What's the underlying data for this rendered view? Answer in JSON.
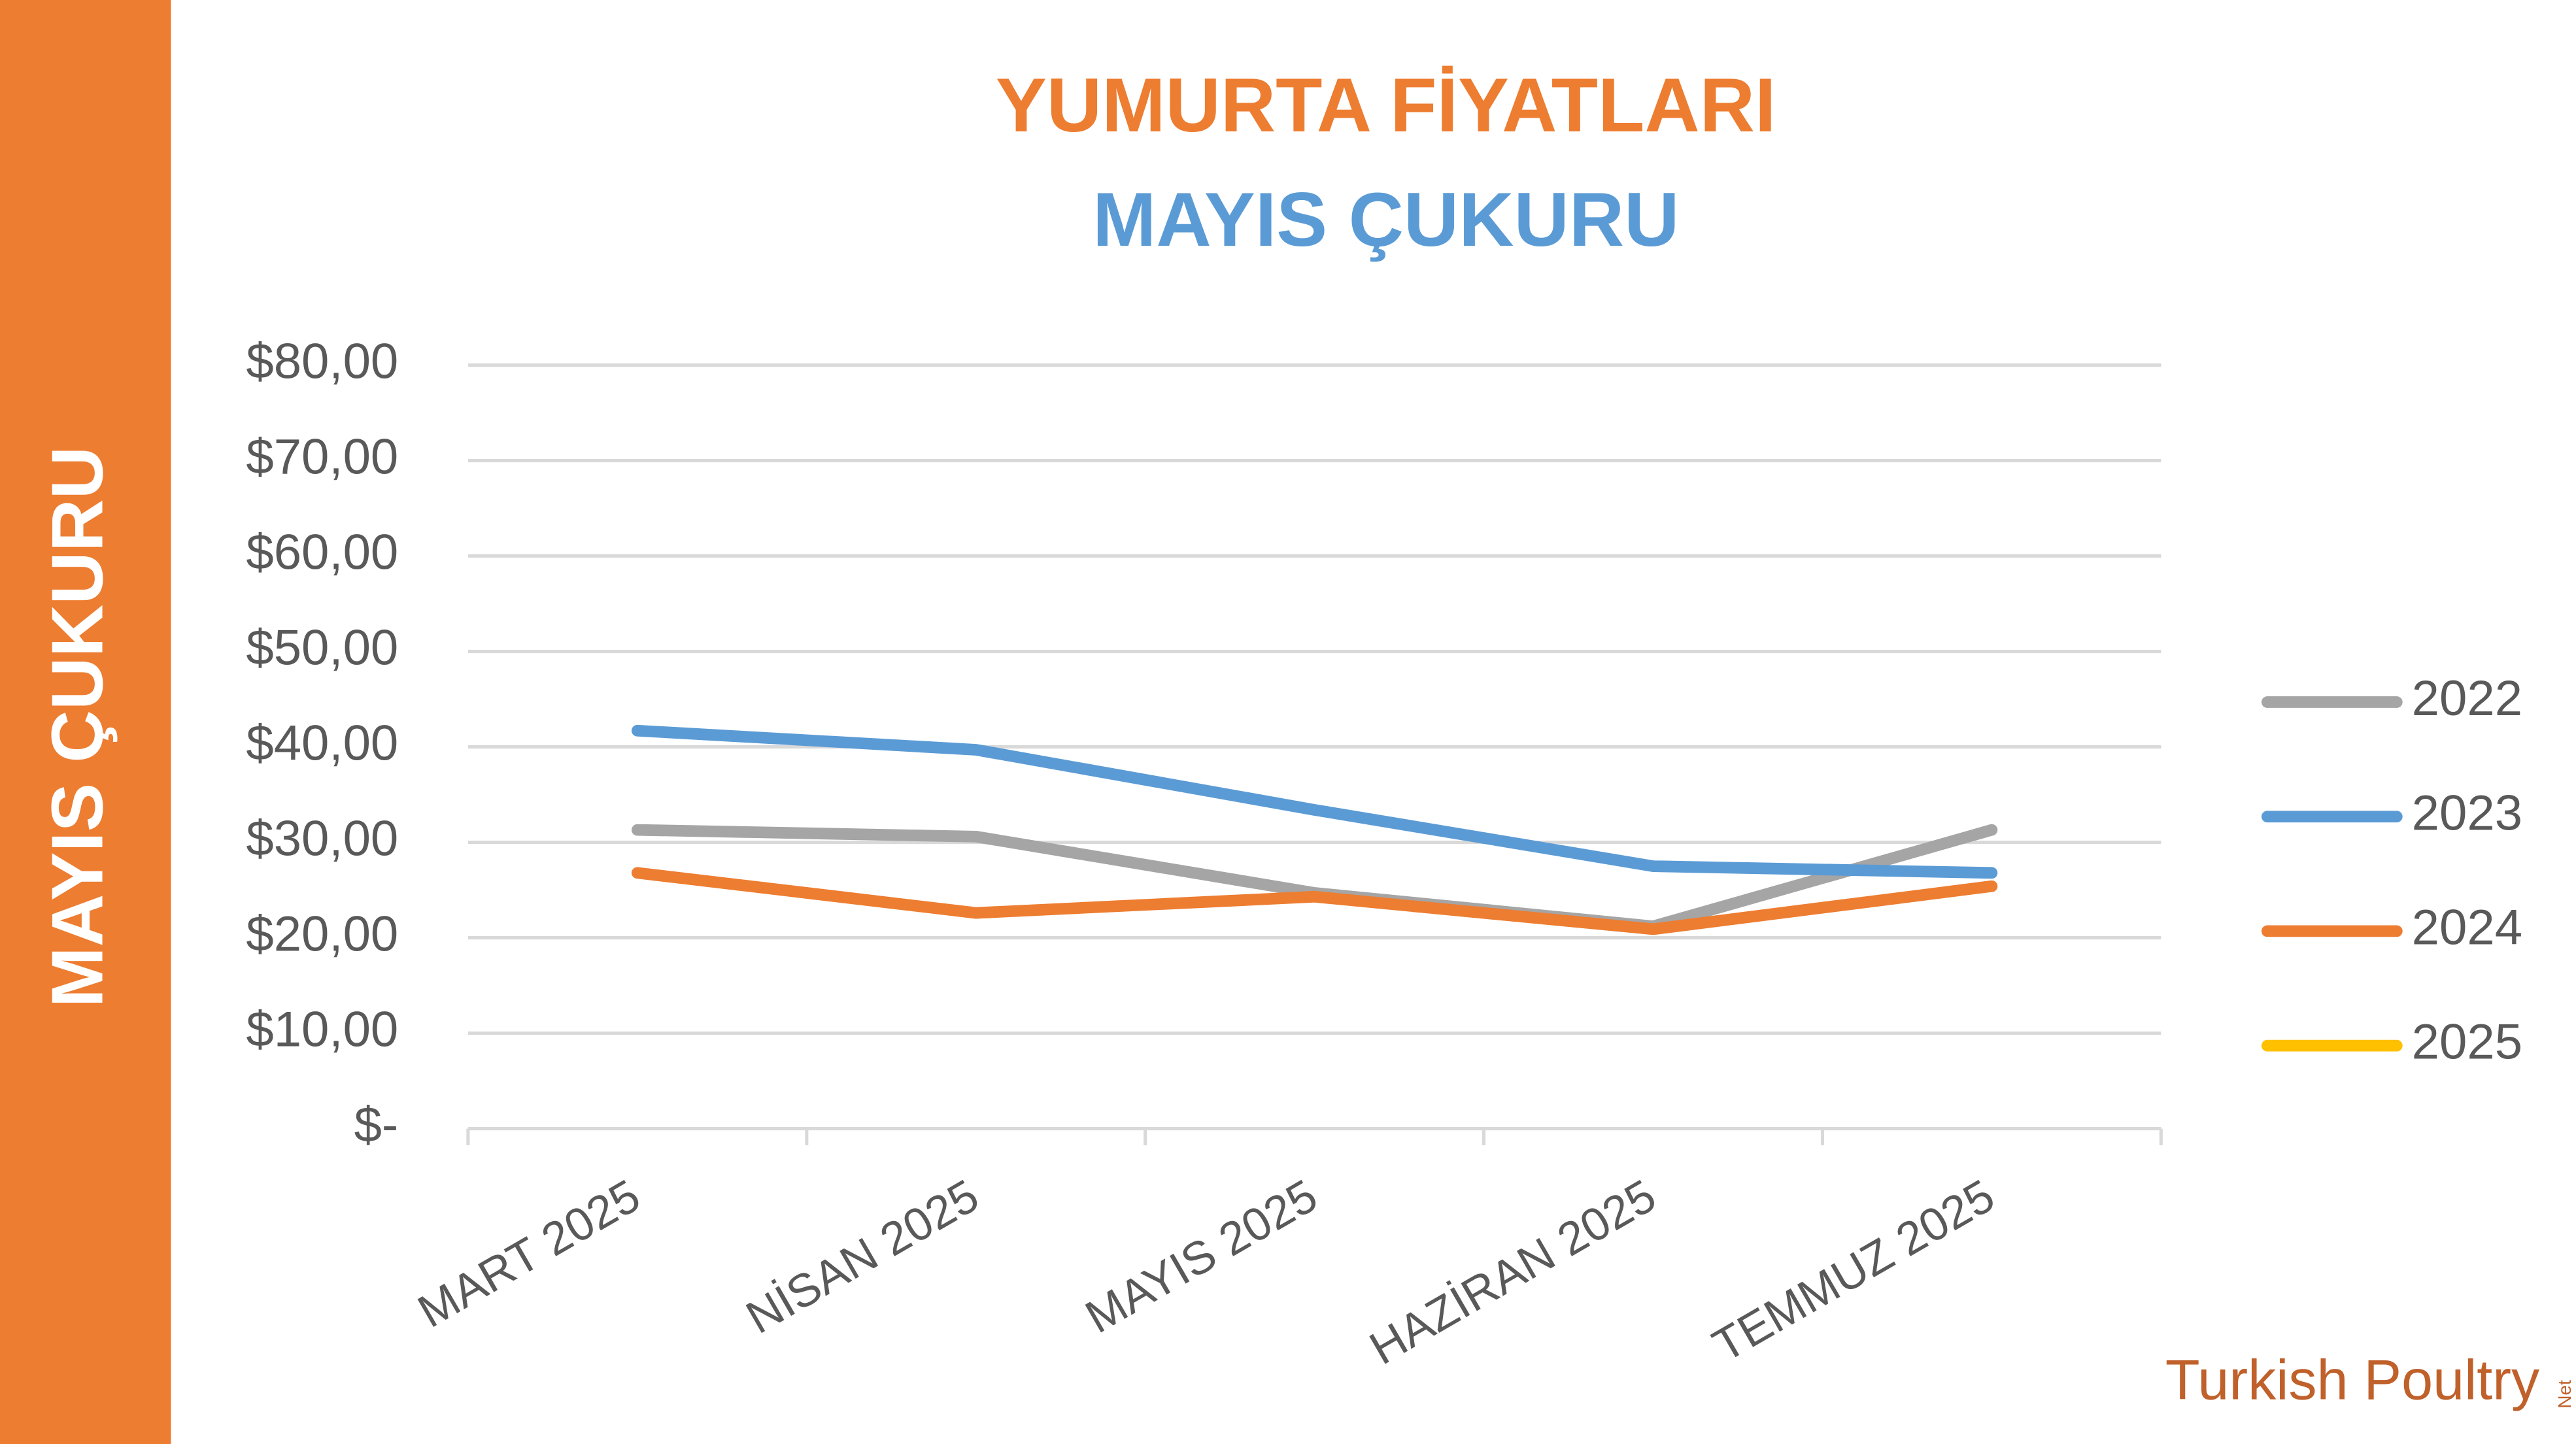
{
  "chart_data": {
    "type": "line",
    "title": "YUMURTA FİYATLARI",
    "subtitle": "MAYIS ÇUKURU",
    "categories": [
      "MART 2025",
      "NİSAN 2025",
      "MAYIS 2025",
      "HAZİRAN 2025",
      "TEMMUZ 2025"
    ],
    "series": [
      {
        "name": "2022",
        "color": "#a5a5a5",
        "values": [
          31.3,
          30.6,
          24.7,
          21.2,
          31.3
        ]
      },
      {
        "name": "2023",
        "color": "#5b9bd5",
        "values": [
          41.7,
          39.7,
          33.4,
          27.5,
          26.8
        ]
      },
      {
        "name": "2024",
        "color": "#ed7d31",
        "values": [
          26.8,
          22.6,
          24.3,
          20.9,
          25.4
        ]
      },
      {
        "name": "2025",
        "color": "#ffc000",
        "values": [
          null,
          null,
          null,
          null,
          null
        ]
      }
    ],
    "ylim": [
      0,
      80
    ],
    "yticks": [
      {
        "value": 0,
        "label": "$-"
      },
      {
        "value": 10,
        "label": "$10,00"
      },
      {
        "value": 20,
        "label": "$20,00"
      },
      {
        "value": 30,
        "label": "$30,00"
      },
      {
        "value": 40,
        "label": "$40,00"
      },
      {
        "value": 50,
        "label": "$50,00"
      },
      {
        "value": 60,
        "label": "$60,00"
      },
      {
        "value": 70,
        "label": "$70,00"
      },
      {
        "value": 80,
        "label": "$80,00"
      }
    ],
    "grid": true,
    "legend": "right"
  },
  "sidebar": {
    "text": "MAYIS ÇUKURU",
    "color": "#ed7d31"
  },
  "logo": {
    "text": "Turkish Poultry",
    "suffix": "Net"
  }
}
